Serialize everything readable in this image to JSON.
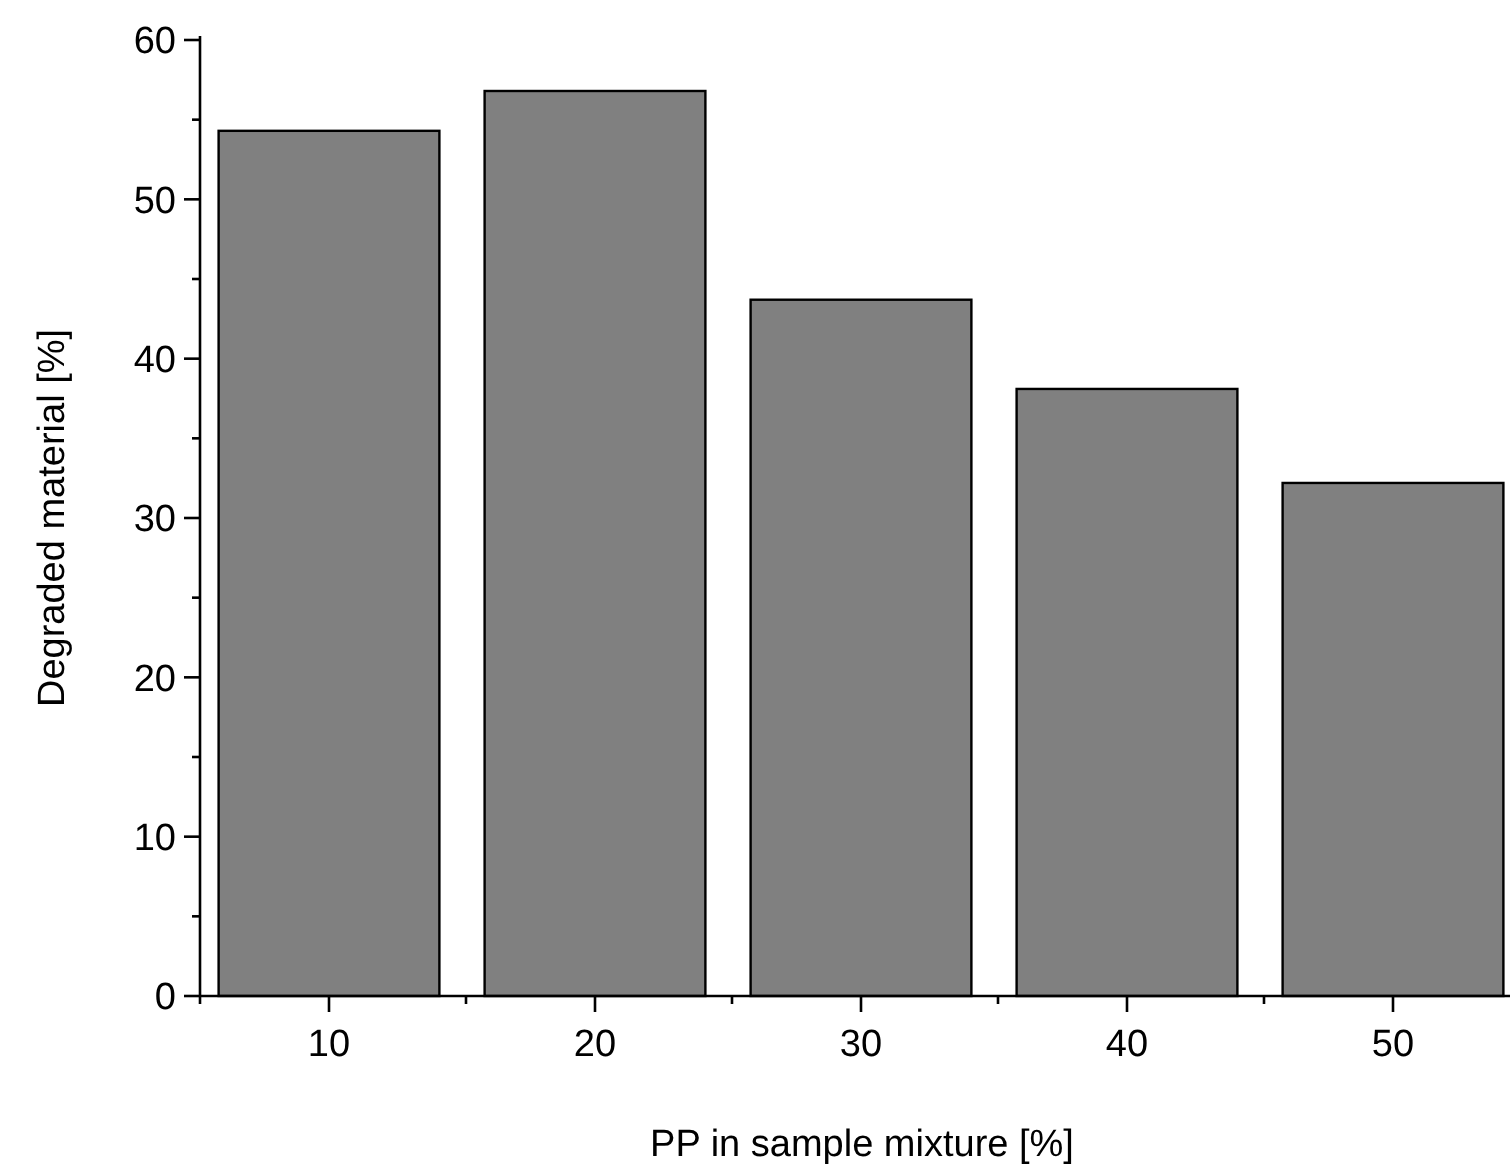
{
  "chart_data": {
    "type": "bar",
    "xlabel": "PP in sample mixture [%]",
    "ylabel": "Degraded material [%]",
    "categories": [
      "10",
      "20",
      "30",
      "40",
      "50"
    ],
    "values": [
      54.3,
      56.8,
      43.7,
      38.1,
      32.2
    ],
    "color": "#808080",
    "ylim": [
      0,
      60
    ],
    "yticks": [
      0,
      10,
      20,
      30,
      40,
      50,
      60
    ],
    "grid": false
  }
}
